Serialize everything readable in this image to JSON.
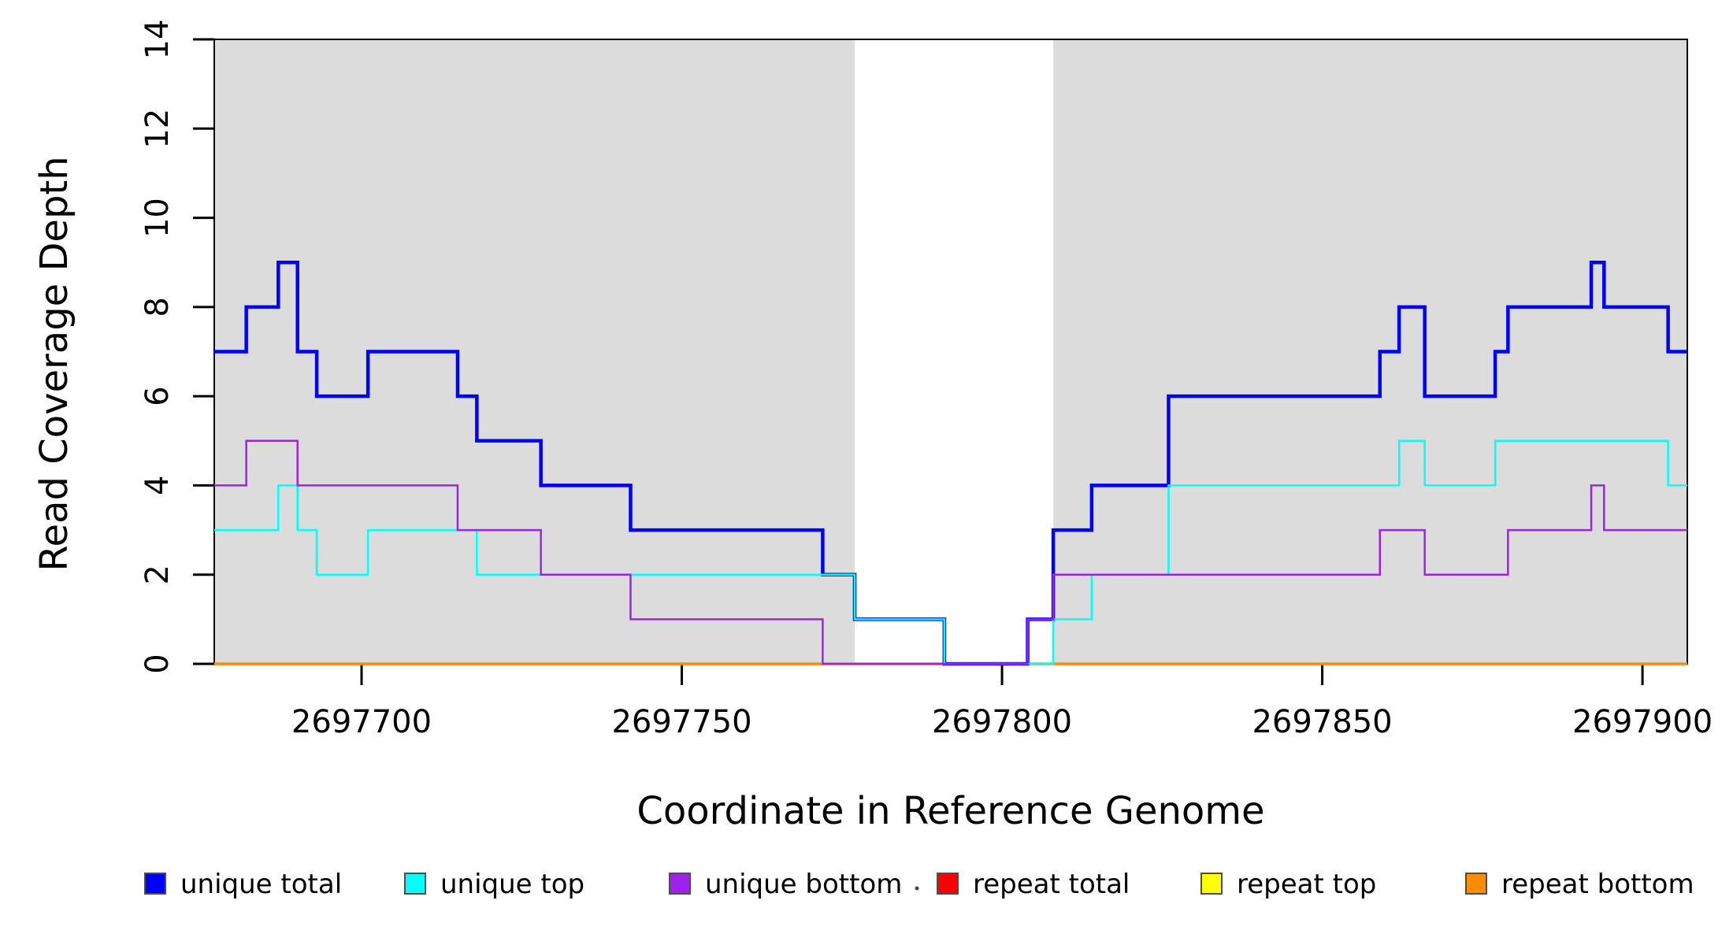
{
  "chart_data": {
    "type": "step",
    "title": "",
    "xlabel": "Coordinate in Reference Genome",
    "ylabel": "Read Coverage Depth",
    "x_range": [
      2697677,
      2697907
    ],
    "y_range": [
      0,
      14
    ],
    "x_ticks": [
      2697700,
      2697750,
      2697800,
      2697850,
      2697900
    ],
    "y_ticks": [
      0,
      2,
      4,
      6,
      8,
      10,
      12,
      14
    ],
    "grid": false,
    "background_color": "#FFFFFF",
    "shaded_region_color": "#DCDCDC",
    "shaded_regions": [
      {
        "x_from": 2697677,
        "x_to": 2697777
      },
      {
        "x_from": 2697808,
        "x_to": 2697907
      }
    ],
    "x_end": 2697907,
    "draw_order": [
      "repeat total",
      "repeat top",
      "repeat bottom",
      "unique total",
      "unique top",
      "unique bottom"
    ],
    "series": [
      {
        "name": "unique total",
        "color": "#0000FF",
        "line_width": 4.5,
        "steps": [
          [
            2697677,
            7
          ],
          [
            2697682,
            8
          ],
          [
            2697687,
            9
          ],
          [
            2697690,
            7
          ],
          [
            2697693,
            6
          ],
          [
            2697701,
            7
          ],
          [
            2697715,
            6
          ],
          [
            2697718,
            5
          ],
          [
            2697728,
            4
          ],
          [
            2697742,
            3
          ],
          [
            2697772,
            2
          ],
          [
            2697777,
            1
          ],
          [
            2697791,
            0
          ],
          [
            2697804,
            1
          ],
          [
            2697808,
            3
          ],
          [
            2697814,
            4
          ],
          [
            2697826,
            6
          ],
          [
            2697859,
            7
          ],
          [
            2697862,
            8
          ],
          [
            2697866,
            6
          ],
          [
            2697877,
            7
          ],
          [
            2697879,
            8
          ],
          [
            2697892,
            9
          ],
          [
            2697894,
            8
          ],
          [
            2697904,
            7
          ]
        ]
      },
      {
        "name": "unique top",
        "color": "#00FFFF",
        "line_width": 2.5,
        "steps": [
          [
            2697677,
            3
          ],
          [
            2697687,
            4
          ],
          [
            2697690,
            3
          ],
          [
            2697693,
            2
          ],
          [
            2697701,
            3
          ],
          [
            2697718,
            2
          ],
          [
            2697777,
            1
          ],
          [
            2697791,
            0
          ],
          [
            2697808,
            1
          ],
          [
            2697814,
            2
          ],
          [
            2697826,
            4
          ],
          [
            2697862,
            5
          ],
          [
            2697866,
            4
          ],
          [
            2697877,
            5
          ],
          [
            2697904,
            4
          ]
        ]
      },
      {
        "name": "unique bottom",
        "color": "#A020F0",
        "line_width": 2.5,
        "steps": [
          [
            2697677,
            4
          ],
          [
            2697682,
            5
          ],
          [
            2697690,
            4
          ],
          [
            2697715,
            3
          ],
          [
            2697728,
            2
          ],
          [
            2697742,
            1
          ],
          [
            2697772,
            0
          ],
          [
            2697804,
            1
          ],
          [
            2697808,
            2
          ],
          [
            2697859,
            3
          ],
          [
            2697866,
            2
          ],
          [
            2697879,
            3
          ],
          [
            2697892,
            4
          ],
          [
            2697894,
            3
          ]
        ]
      },
      {
        "name": "repeat total",
        "color": "#FF0000",
        "line_width": 2.5,
        "steps": [
          [
            2697677,
            0
          ]
        ]
      },
      {
        "name": "repeat top",
        "color": "#FFFF00",
        "line_width": 2.5,
        "steps": [
          [
            2697677,
            0
          ]
        ]
      },
      {
        "name": "repeat bottom",
        "color": "#FF8C00",
        "line_width": 3.5,
        "steps": [
          [
            2697677,
            0
          ]
        ]
      }
    ]
  },
  "legend": {
    "items": [
      {
        "label": "unique total",
        "color": "#0000FF"
      },
      {
        "label": "unique top",
        "color": "#00FFFF"
      },
      {
        "label": "unique bottom",
        "color": "#A020F0"
      },
      {
        "label": "repeat total",
        "color": "#FF0000"
      },
      {
        "label": "repeat top",
        "color": "#FFFF00"
      },
      {
        "label": "repeat bottom",
        "color": "#FF8C00"
      }
    ],
    "swatch_border_color": "#4D4D4D",
    "stray_dot": true
  }
}
